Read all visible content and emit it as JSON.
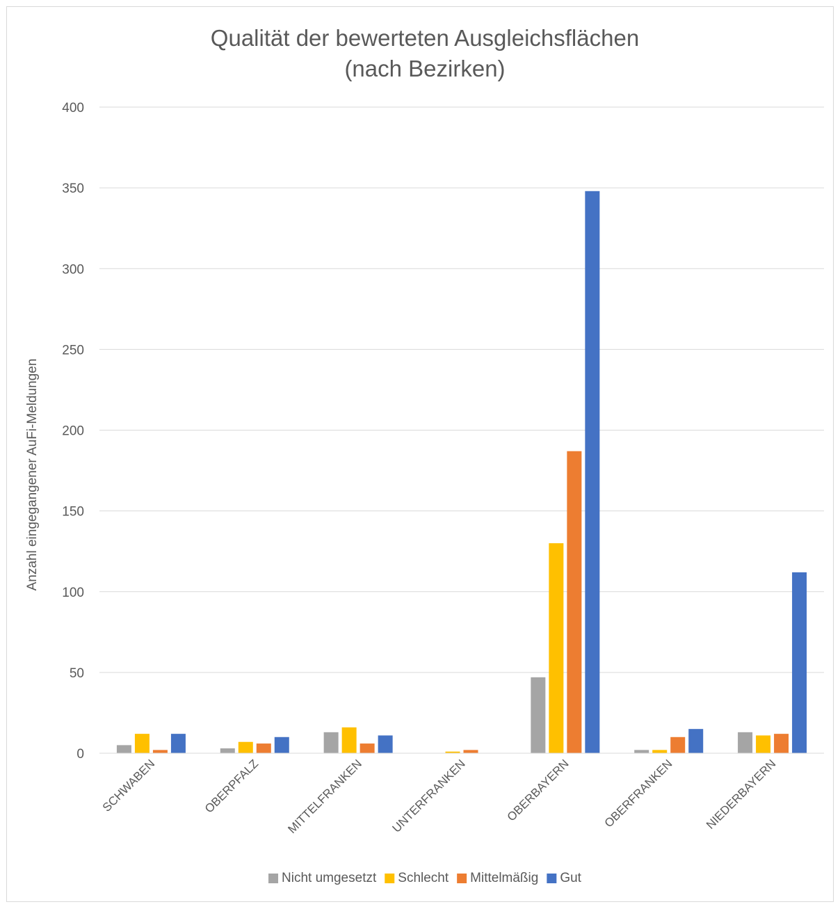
{
  "chart_data": {
    "type": "bar",
    "title": [
      "Qualität der bewerteten Ausgleichsflächen",
      "(nach Bezirken)"
    ],
    "xlabel": "",
    "ylabel": "Anzahl eingegangener AuFi-Meldungen",
    "ylim": [
      0,
      400
    ],
    "yticks": [
      0,
      50,
      100,
      150,
      200,
      250,
      300,
      350,
      400
    ],
    "grid": true,
    "legend_position": "bottom",
    "categories": [
      "SCHWABEN",
      "OBERPFALZ",
      "MITTELFRANKEN",
      "UNTERFRANKEN",
      "OBERBAYERN",
      "OBERFRANKEN",
      "NIEDERBAYERN"
    ],
    "series": [
      {
        "name": "Nicht umgesetzt",
        "color": "#a5a5a5",
        "values": [
          5,
          3,
          13,
          0,
          47,
          2,
          13
        ]
      },
      {
        "name": "Schlecht",
        "color": "#ffc000",
        "values": [
          12,
          7,
          16,
          1,
          130,
          2,
          11
        ]
      },
      {
        "name": "Mittelmäßig",
        "color": "#ed7d31",
        "values": [
          2,
          6,
          6,
          2,
          187,
          10,
          12
        ]
      },
      {
        "name": "Gut",
        "color": "#4472c4",
        "values": [
          12,
          10,
          11,
          0,
          348,
          15,
          112
        ]
      }
    ]
  }
}
